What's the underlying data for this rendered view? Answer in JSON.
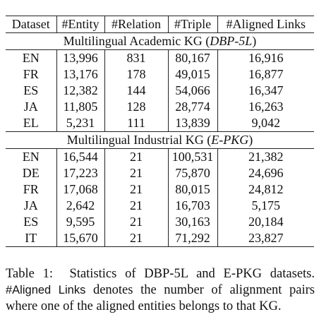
{
  "table": {
    "header": [
      "Dataset",
      "#Entity",
      "#Relation",
      "#Triple",
      "#Aligned Links"
    ],
    "sections": [
      {
        "title_prefix": "Multilingual Academic KG (",
        "title_italic": "DBP-5L",
        "title_suffix": ")",
        "rows": [
          [
            "EN",
            "13,996",
            "831",
            "80,167",
            "16,916"
          ],
          [
            "FR",
            "13,176",
            "178",
            "49,015",
            "16,877"
          ],
          [
            "ES",
            "12,382",
            "144",
            "54,066",
            "16,347"
          ],
          [
            "JA",
            "11,805",
            "128",
            "28,774",
            "16,263"
          ],
          [
            "EL",
            "5,231",
            "111",
            "13,839",
            "9,042"
          ]
        ]
      },
      {
        "title_prefix": "Multilingual Industrial KG (",
        "title_italic": "E-PKG",
        "title_suffix": ")",
        "rows": [
          [
            "EN",
            "16,544",
            "21",
            "100,531",
            "21,382"
          ],
          [
            "DE",
            "17,223",
            "21",
            "75,870",
            "24,696"
          ],
          [
            "FR",
            "17,068",
            "21",
            "80,015",
            "24,812"
          ],
          [
            "JA",
            "2,642",
            "21",
            "16,703",
            "5,175"
          ],
          [
            "ES",
            "9,595",
            "21",
            "30,163",
            "20,184"
          ],
          [
            "IT",
            "15,670",
            "21",
            "71,292",
            "23,827"
          ]
        ]
      }
    ]
  },
  "caption": {
    "label": "Table 1:",
    "text1": "Statistics of DBP-5L and E-PKG datasets.",
    "code": "#Aligned Links",
    "text2": "denotes the number of alignment pairs where one of the aligned entities belongs to that KG."
  }
}
